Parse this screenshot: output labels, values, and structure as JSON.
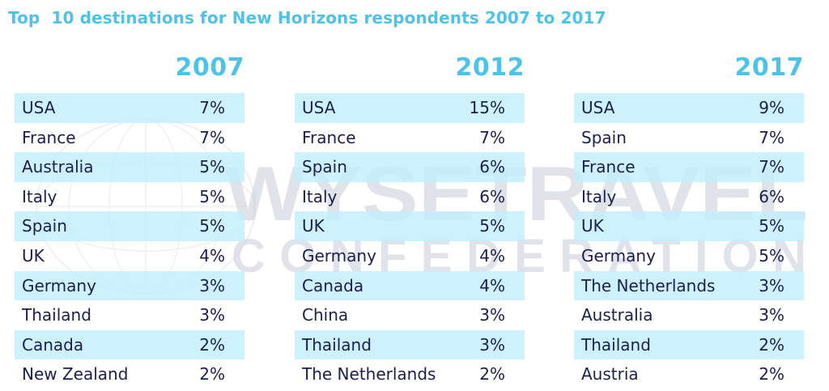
{
  "title": "Top  10 destinations for New Horizons respondents 2007 to 2017",
  "watermark": {
    "line1": "WYSETRAVEL",
    "line2": "CONFEDERATION"
  },
  "colors": {
    "title": "#4dc3ea",
    "row_shade": "#c2eefc",
    "text": "#1a1f4d",
    "watermark": "#c9cdd9"
  },
  "chart_data": [
    {
      "type": "table",
      "title": "2007",
      "rows": [
        {
          "country": "USA",
          "pct": "7%"
        },
        {
          "country": "France",
          "pct": "7%"
        },
        {
          "country": "Australia",
          "pct": "5%"
        },
        {
          "country": "Italy",
          "pct": "5%"
        },
        {
          "country": "Spain",
          "pct": "5%"
        },
        {
          "country": "UK",
          "pct": "4%"
        },
        {
          "country": "Germany",
          "pct": "3%"
        },
        {
          "country": "Thailand",
          "pct": "3%"
        },
        {
          "country": "Canada",
          "pct": "2%"
        },
        {
          "country": "New Zealand",
          "pct": "2%"
        }
      ]
    },
    {
      "type": "table",
      "title": "2012",
      "rows": [
        {
          "country": "USA",
          "pct": "15%"
        },
        {
          "country": "France",
          "pct": "7%"
        },
        {
          "country": "Spain",
          "pct": "6%"
        },
        {
          "country": "Italy",
          "pct": "6%"
        },
        {
          "country": "UK",
          "pct": "5%"
        },
        {
          "country": "Germany",
          "pct": "4%"
        },
        {
          "country": "Canada",
          "pct": "4%"
        },
        {
          "country": "China",
          "pct": "3%"
        },
        {
          "country": "Thailand",
          "pct": "3%"
        },
        {
          "country": "The Netherlands",
          "pct": "2%"
        }
      ]
    },
    {
      "type": "table",
      "title": "2017",
      "rows": [
        {
          "country": "USA",
          "pct": "9%"
        },
        {
          "country": "Spain",
          "pct": "7%"
        },
        {
          "country": "France",
          "pct": "7%"
        },
        {
          "country": "Italy",
          "pct": "6%"
        },
        {
          "country": "UK",
          "pct": "5%"
        },
        {
          "country": "Germany",
          "pct": "5%"
        },
        {
          "country": "The Netherlands",
          "pct": "3%"
        },
        {
          "country": "Australia",
          "pct": "3%"
        },
        {
          "country": "Thailand",
          "pct": "2%"
        },
        {
          "country": "Austria",
          "pct": "2%"
        }
      ]
    }
  ]
}
